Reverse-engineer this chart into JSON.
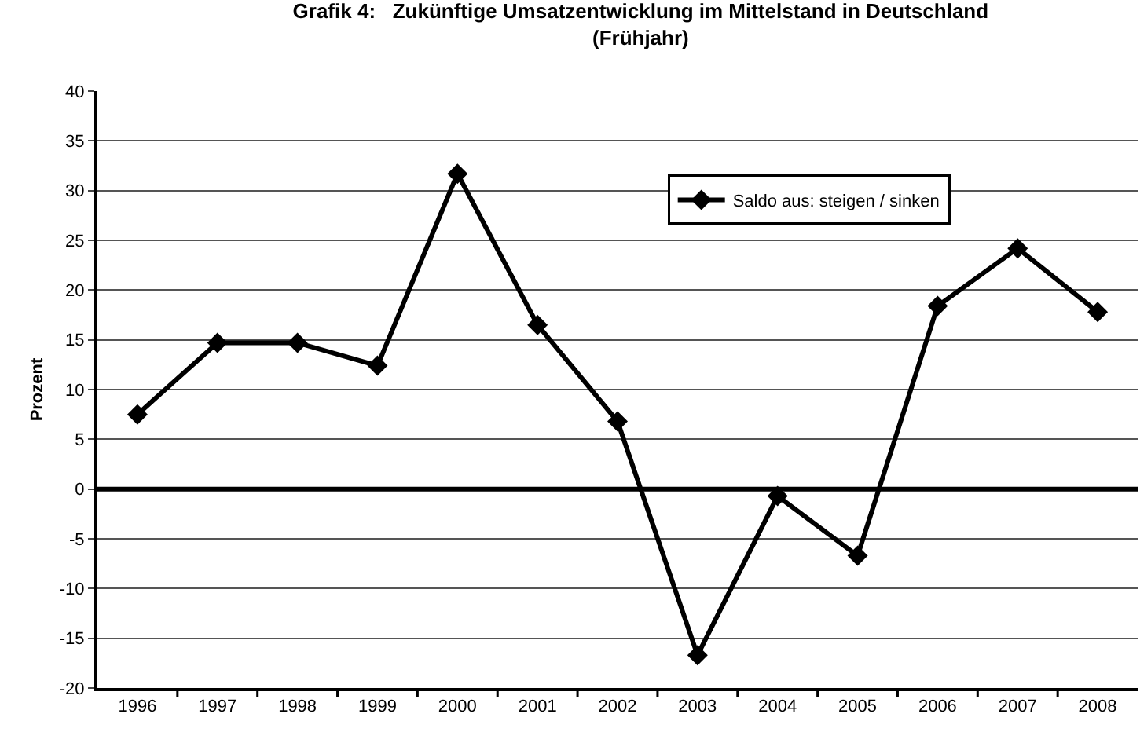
{
  "chart_data": {
    "type": "line",
    "title": "Grafik 4:   Zukünftige Umsatzentwicklung im Mittelstand in Deutschland\n(Frühjahr)",
    "ylabel": "Prozent",
    "categories": [
      "1996",
      "1997",
      "1998",
      "1999",
      "2000",
      "2001",
      "2002",
      "2003",
      "2004",
      "2005",
      "2006",
      "2007",
      "2008"
    ],
    "series": [
      {
        "name": "Saldo aus: steigen / sinken",
        "color": "#000000",
        "values": [
          7.5,
          14.7,
          14.7,
          12.4,
          31.7,
          16.5,
          6.8,
          -16.7,
          -0.7,
          -6.7,
          18.4,
          24.2,
          17.8
        ]
      }
    ],
    "ylim": [
      -20,
      40
    ],
    "yticks": [
      -20,
      -15,
      -10,
      -5,
      0,
      5,
      10,
      15,
      20,
      25,
      30,
      35,
      40
    ],
    "ref_lines": [
      {
        "axis": "y",
        "value": 0,
        "color": "#000000",
        "line_style": "solid"
      }
    ],
    "grid": "y",
    "legend": "top right",
    "marker": "diamond",
    "line_style": "solid"
  }
}
